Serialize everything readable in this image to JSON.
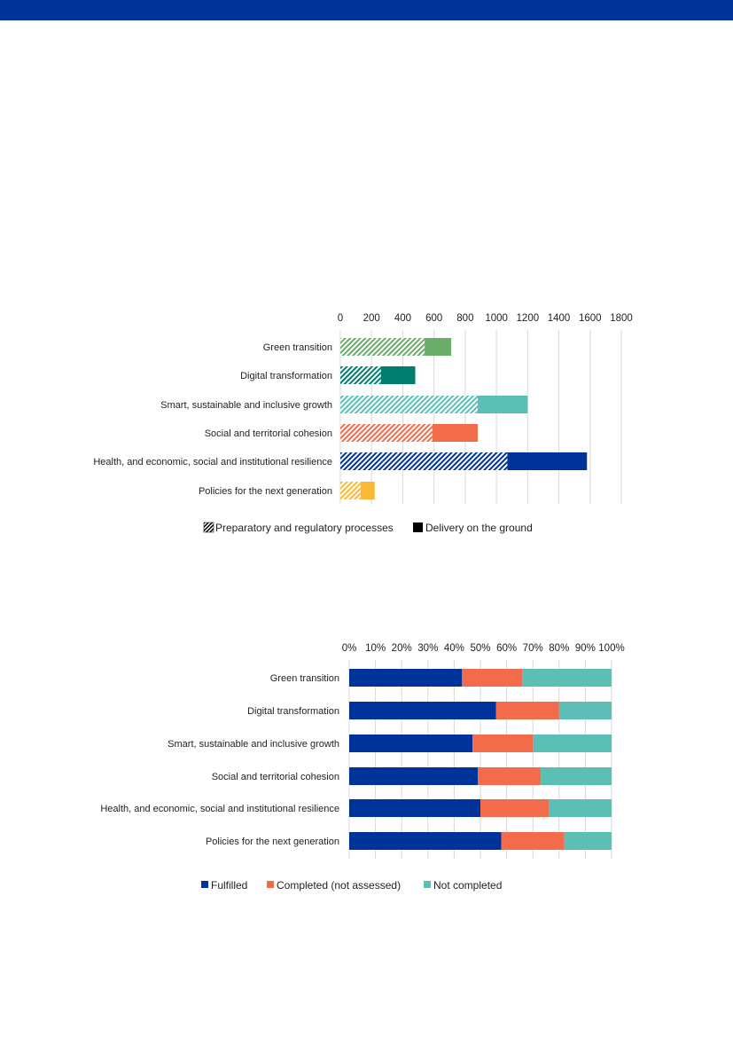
{
  "page": {
    "band_color": "#003399"
  },
  "chart_data": [
    {
      "type": "bar",
      "orientation": "horizontal",
      "stacked": true,
      "categories": [
        "Green transition",
        "Digital transformation",
        "Smart, sustainable and inclusive growth",
        "Social and territorial cohesion",
        "Health, and economic, social and institutional resilience",
        "Policies for the next generation"
      ],
      "series": [
        {
          "name": "Preparatory and regulatory processes",
          "pattern": "hatched",
          "values": [
            540,
            260,
            880,
            590,
            1070,
            130
          ]
        },
        {
          "name": "Delivery on the ground",
          "pattern": "solid",
          "values": [
            170,
            220,
            320,
            290,
            510,
            90
          ]
        }
      ],
      "category_colors": [
        "#6aac6a",
        "#007d6f",
        "#5bbfb5",
        "#f26b4a",
        "#003399",
        "#fbb836"
      ],
      "xlim": [
        0,
        1800
      ],
      "xticks": [
        "0",
        "200",
        "400",
        "600",
        "800",
        "1000",
        "1200",
        "1400",
        "1600",
        "1800"
      ],
      "xaxis_position": "top",
      "grid": "vertical",
      "legend": "bottom",
      "title": "",
      "xlabel": "",
      "ylabel": ""
    },
    {
      "type": "bar",
      "orientation": "horizontal",
      "stacked": true,
      "percent": true,
      "categories": [
        "Green transition",
        "Digital transformation",
        "Smart, sustainable and inclusive growth",
        "Social and territorial cohesion",
        "Health, and economic, social and institutional resilience",
        "Policies for the next generation"
      ],
      "series": [
        {
          "name": "Fulfilled",
          "color": "#003399",
          "values": [
            43,
            56,
            47,
            49,
            50,
            58
          ]
        },
        {
          "name": "Completed (not assessed)",
          "color": "#f26b4a",
          "values": [
            23,
            24,
            23,
            24,
            26,
            24
          ]
        },
        {
          "name": "Not completed",
          "color": "#5bbfb5",
          "values": [
            34,
            20,
            30,
            27,
            24,
            18
          ]
        }
      ],
      "xlim": [
        0,
        100
      ],
      "xticks": [
        "0%",
        "10%",
        "20%",
        "30%",
        "40%",
        "50%",
        "60%",
        "70%",
        "80%",
        "90%",
        "100%"
      ],
      "xaxis_position": "top",
      "grid": "vertical",
      "legend": "bottom",
      "title": "",
      "xlabel": "",
      "ylabel": ""
    }
  ]
}
